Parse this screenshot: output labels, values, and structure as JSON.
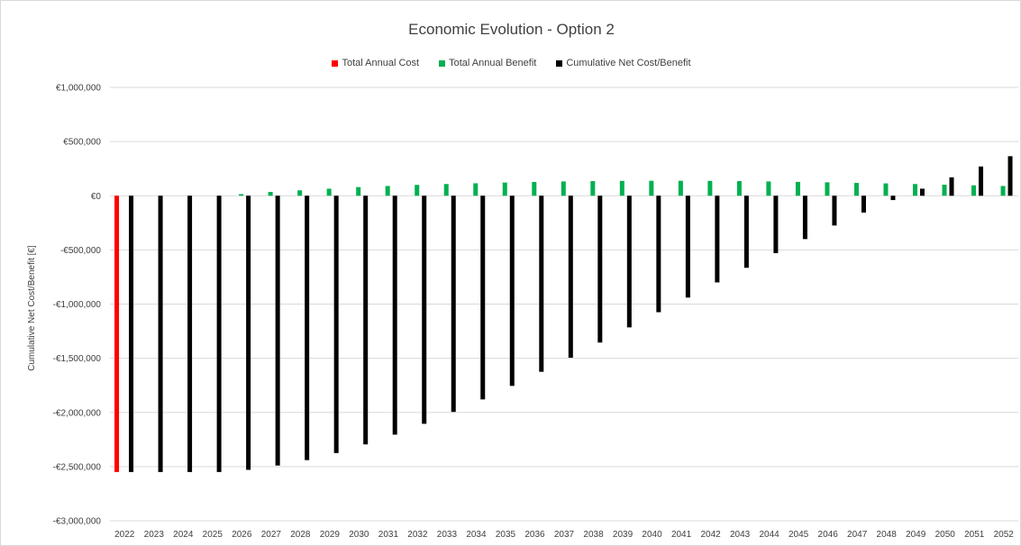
{
  "chart_data": {
    "type": "bar",
    "title": "Economic Evolution - Option 2",
    "xlabel": "",
    "ylabel": "Cumulative Net Cost/Benefit [€]",
    "ylim": [
      -3000000,
      1000000
    ],
    "yticks": [
      1000000,
      500000,
      0,
      -500000,
      -1000000,
      -1500000,
      -2000000,
      -2500000,
      -3000000
    ],
    "ytick_labels": [
      "€1,000,000",
      "€500,000",
      "€0",
      "-€500,000",
      "-€1,000,000",
      "-€1,500,000",
      "-€2,000,000",
      "-€2,500,000",
      "-€3,000,000"
    ],
    "grid": true,
    "legend_position": "top",
    "categories": [
      "2022",
      "2023",
      "2024",
      "2025",
      "2026",
      "2027",
      "2028",
      "2029",
      "2030",
      "2031",
      "2032",
      "2033",
      "2034",
      "2035",
      "2036",
      "2037",
      "2038",
      "2039",
      "2040",
      "2041",
      "2042",
      "2043",
      "2044",
      "2045",
      "2046",
      "2047",
      "2048",
      "2049",
      "2050",
      "2051",
      "2052"
    ],
    "series": [
      {
        "name": "Total Annual Cost",
        "color": "#ff0000",
        "values": [
          -2550000,
          0,
          0,
          0,
          0,
          0,
          0,
          0,
          0,
          0,
          0,
          0,
          0,
          0,
          0,
          0,
          0,
          0,
          0,
          0,
          0,
          0,
          0,
          0,
          0,
          0,
          0,
          0,
          0,
          0,
          0
        ]
      },
      {
        "name": "Total Annual Benefit",
        "color": "#00b050",
        "values": [
          0,
          0,
          0,
          0,
          15000,
          35000,
          50000,
          65000,
          80000,
          90000,
          100000,
          108000,
          115000,
          122000,
          127000,
          132000,
          135000,
          137000,
          138000,
          138000,
          137000,
          135000,
          132000,
          128000,
          124000,
          119000,
          114000,
          108000,
          102000,
          96000,
          90000
        ]
      },
      {
        "name": "Cumulative Net Cost/Benefit",
        "color": "#000000",
        "values": [
          -2550000,
          -2550000,
          -2550000,
          -2550000,
          -2530000,
          -2490000,
          -2440000,
          -2375000,
          -2295000,
          -2205000,
          -2105000,
          -1995000,
          -1880000,
          -1755000,
          -1625000,
          -1495000,
          -1355000,
          -1215000,
          -1075000,
          -940000,
          -800000,
          -665000,
          -530000,
          -400000,
          -275000,
          -155000,
          -40000,
          65000,
          170000,
          270000,
          365000
        ]
      }
    ]
  }
}
